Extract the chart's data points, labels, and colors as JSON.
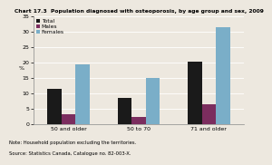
{
  "title": "Chart 17.3  Population diagnosed with osteoporosis, by age group and sex, 2009",
  "ylabel": "%",
  "categories": [
    "50 and older",
    "50 to 70",
    "71 and older"
  ],
  "series_order": [
    "Total",
    "Males",
    "Females"
  ],
  "series": {
    "Total": [
      11.5,
      8.5,
      20.3
    ],
    "Males": [
      3.3,
      2.3,
      6.3
    ],
    "Females": [
      19.3,
      14.8,
      31.5
    ]
  },
  "colors": {
    "Total": "#1a1a1a",
    "Males": "#7b2d5e",
    "Females": "#7aaec8"
  },
  "ylim": [
    0,
    35
  ],
  "yticks": [
    0,
    5,
    10,
    15,
    20,
    25,
    30,
    35
  ],
  "note": "Note: Household population excluding the territories.",
  "source": "Source: Statistics Canada, Catalogue no. 82-003-X.",
  "bg_color": "#ede8df",
  "bar_width": 0.2,
  "title_fontsize": 4.3,
  "legend_fontsize": 4.3,
  "tick_fontsize": 4.5,
  "note_fontsize": 3.8
}
